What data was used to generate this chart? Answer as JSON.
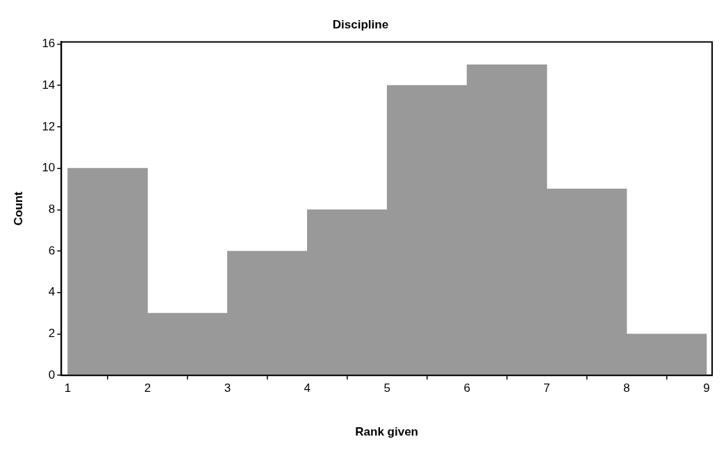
{
  "chart_data": {
    "type": "histogram",
    "title": "Discipline",
    "xlabel": "Rank given",
    "ylabel": "Count",
    "bins": [
      1,
      2,
      3,
      4,
      5,
      6,
      7,
      8,
      9
    ],
    "values": [
      10,
      3,
      6,
      8,
      14,
      15,
      9,
      2
    ],
    "color": "#999999",
    "xlim": [
      0.92,
      9.07
    ],
    "xticks": [
      1,
      2,
      3,
      4,
      5,
      6,
      7,
      8,
      9
    ],
    "ylim": [
      0,
      16.1
    ],
    "yticks": [
      0,
      2,
      4,
      6,
      8,
      10,
      12,
      14,
      16
    ],
    "grid": false,
    "legend": false
  }
}
